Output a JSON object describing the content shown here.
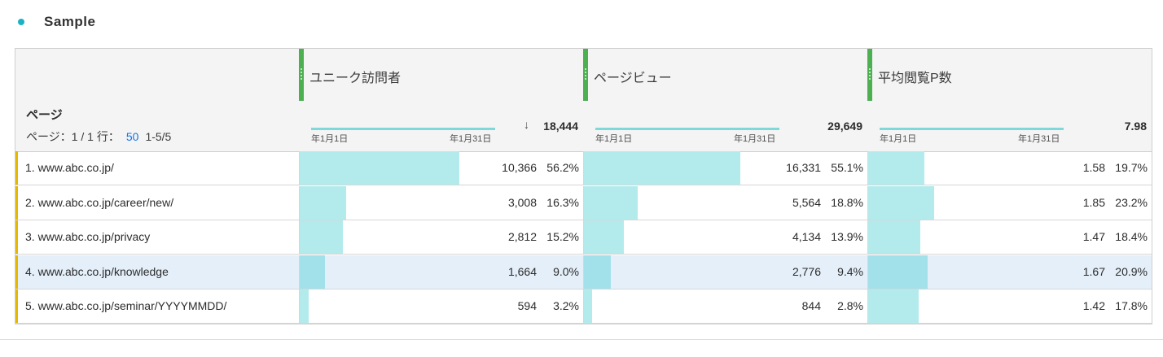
{
  "panel": {
    "title": "Sample"
  },
  "metrics": [
    {
      "name": "ユニーク訪問者",
      "total": "18,444",
      "sorted": true,
      "date_start": "年1月1日",
      "date_end": "年1月31日"
    },
    {
      "name": "ページビュー",
      "total": "29,649",
      "sorted": false,
      "date_start": "年1月1日",
      "date_end": "年1月31日"
    },
    {
      "name": "平均閲覧P数",
      "total": "7.98",
      "sorted": false,
      "date_start": "年1月1日",
      "date_end": "年1月31日"
    }
  ],
  "dimension": {
    "title": "ページ",
    "pager_prefix": "ページ：1 / 1 行：",
    "rows_per_page": "50",
    "range": "1-5/5"
  },
  "sort_icon": "arrow-down-icon",
  "rows": [
    {
      "label": "1.  www.abc.co.jp/",
      "highlight": false,
      "cells": [
        {
          "value": "10,366",
          "pct": "56.2%",
          "fill": 0.562
        },
        {
          "value": "16,331",
          "pct": "55.1%",
          "fill": 0.551
        },
        {
          "value": "1.58",
          "pct": "19.7%",
          "fill": 0.197
        }
      ]
    },
    {
      "label": "2.  www.abc.co.jp/career/new/",
      "highlight": false,
      "cells": [
        {
          "value": "3,008",
          "pct": "16.3%",
          "fill": 0.163
        },
        {
          "value": "5,564",
          "pct": "18.8%",
          "fill": 0.188
        },
        {
          "value": "1.85",
          "pct": "23.2%",
          "fill": 0.232
        }
      ]
    },
    {
      "label": "3.  www.abc.co.jp/privacy",
      "highlight": false,
      "cells": [
        {
          "value": "2,812",
          "pct": "15.2%",
          "fill": 0.152
        },
        {
          "value": "4,134",
          "pct": "13.9%",
          "fill": 0.139
        },
        {
          "value": "1.47",
          "pct": "18.4%",
          "fill": 0.184
        }
      ]
    },
    {
      "label": "4.  www.abc.co.jp/knowledge",
      "highlight": true,
      "cells": [
        {
          "value": "1,664",
          "pct": "9.0%",
          "fill": 0.09
        },
        {
          "value": "2,776",
          "pct": "9.4%",
          "fill": 0.094
        },
        {
          "value": "1.67",
          "pct": "20.9%",
          "fill": 0.209
        }
      ]
    },
    {
      "label": "5.  www.abc.co.jp/seminar/YYYYMMDD/",
      "highlight": false,
      "cells": [
        {
          "value": "594",
          "pct": "3.2%",
          "fill": 0.032
        },
        {
          "value": "844",
          "pct": "2.8%",
          "fill": 0.028
        },
        {
          "value": "1.42",
          "pct": "17.8%",
          "fill": 0.178
        }
      ]
    }
  ],
  "colors": {
    "accent": "#1bb3c4",
    "column_grip": "#4caf50",
    "bar": "#b3ebed",
    "row_accent": "#e6b800",
    "link": "#1473e6"
  }
}
